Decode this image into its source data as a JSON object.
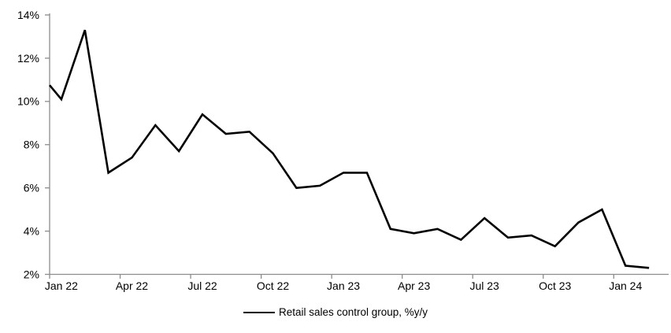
{
  "page": {
    "background": "#ffffff"
  },
  "chart_data": {
    "type": "line",
    "title": "",
    "xlabel": "",
    "ylabel": "",
    "grid": "off",
    "legend_position": "bottom-center",
    "axis_color": "#8c8c8c",
    "text_color": "#000000",
    "ylim": [
      2,
      14
    ],
    "y_ticks": [
      {
        "value": 14,
        "label": "14%"
      },
      {
        "value": 12,
        "label": "12%"
      },
      {
        "value": 10,
        "label": "10%"
      },
      {
        "value": 8,
        "label": "8%"
      },
      {
        "value": 6,
        "label": "6%"
      },
      {
        "value": 4,
        "label": "4%"
      },
      {
        "value": 2,
        "label": "2%"
      }
    ],
    "x_tick_interval": 3,
    "x_tick_labels": [
      "Jan 22",
      "Apr 22",
      "Jul 22",
      "Oct 22",
      "Jan 23",
      "Apr 23",
      "Jul 23",
      "Oct 23",
      "Jan 24"
    ],
    "x_categories": [
      "Jan 22",
      "Feb 22",
      "Mar 22",
      "Apr 22",
      "May 22",
      "Jun 22",
      "Jul 22",
      "Aug 22",
      "Sep 22",
      "Oct 22",
      "Nov 22",
      "Dec 22",
      "Jan 23",
      "Feb 23",
      "Mar 23",
      "Apr 23",
      "May 23",
      "Jun 23",
      "Jul 23",
      "Aug 23",
      "Sep 23",
      "Oct 23",
      "Nov 23",
      "Dec 23",
      "Jan 24",
      "Feb 24"
    ],
    "series": [
      {
        "name": "Retail sales control group, %y/y",
        "color": "#000000",
        "clipped_start_value": 10.75,
        "values": [
          10.1,
          13.3,
          6.7,
          7.4,
          8.9,
          7.7,
          9.4,
          8.5,
          8.6,
          7.6,
          6.0,
          6.1,
          6.7,
          6.7,
          4.1,
          3.9,
          4.1,
          3.6,
          4.6,
          3.7,
          3.8,
          3.3,
          4.4,
          5.0,
          2.4,
          2.3
        ]
      }
    ]
  }
}
